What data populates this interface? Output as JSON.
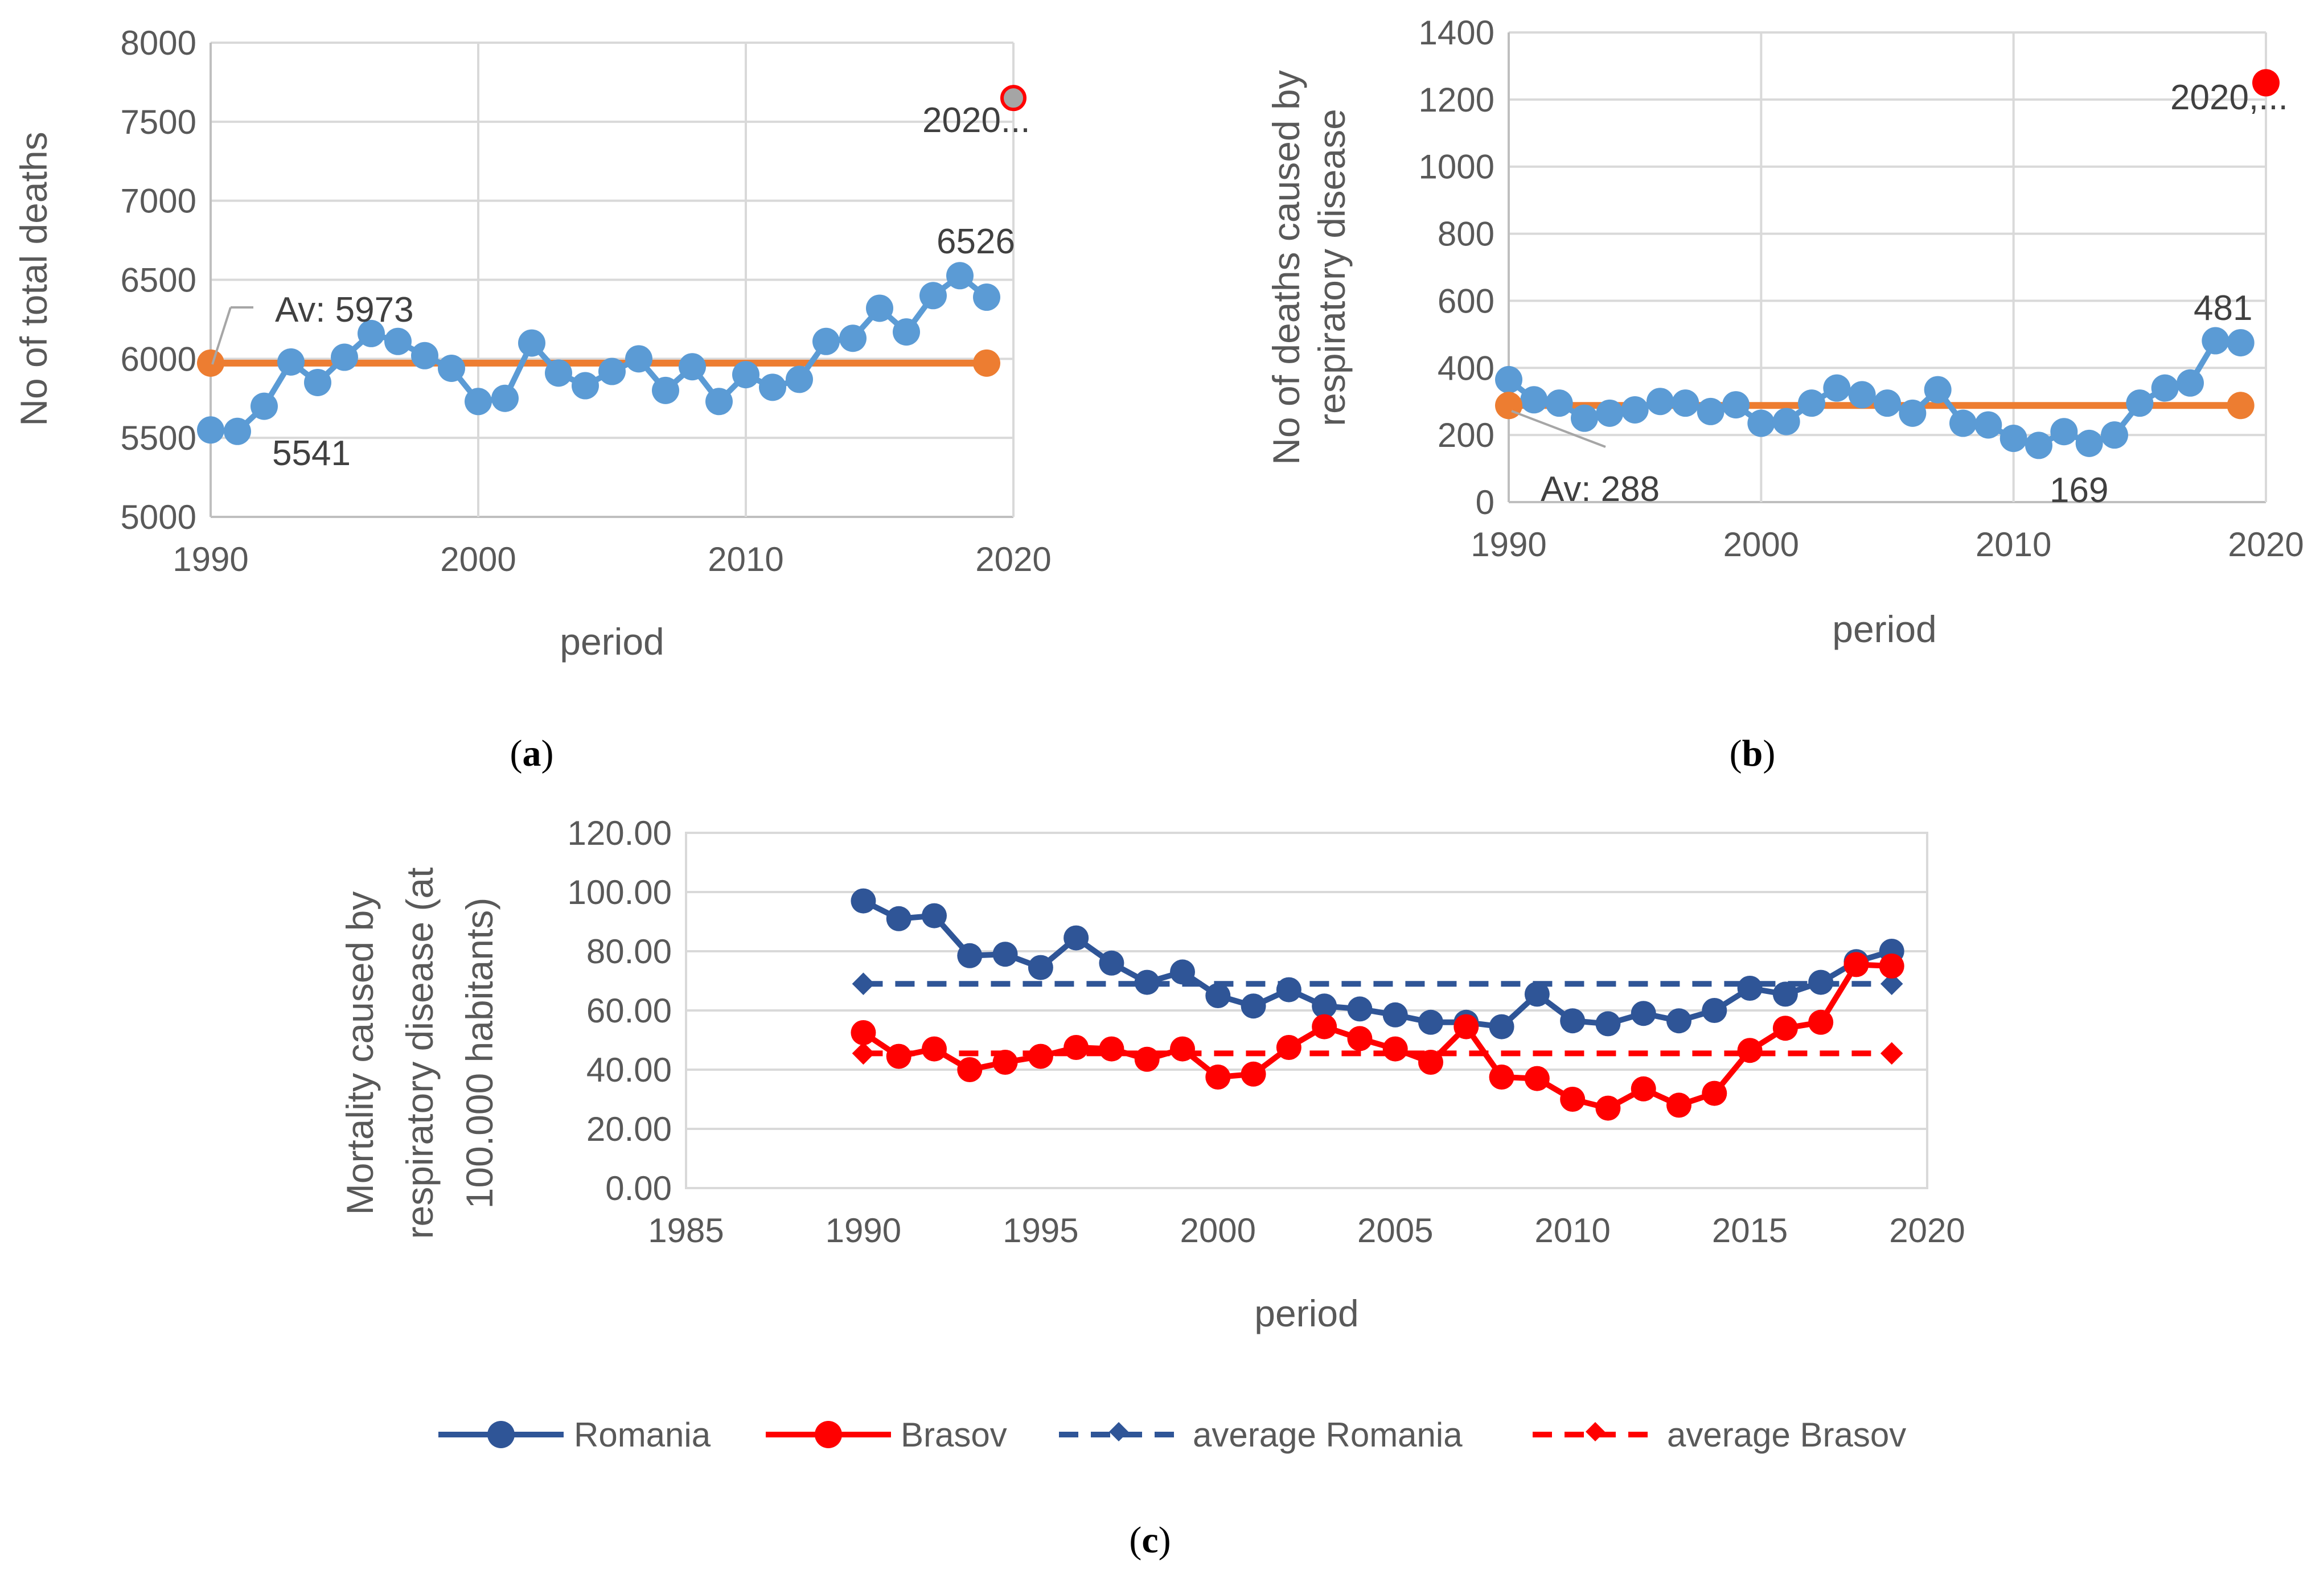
{
  "colors": {
    "series_a_b": "#5B9BD5",
    "average_a_b": "#ED7D31",
    "highlight_2020": "#FF0000",
    "grey_point": "#A5A5A5",
    "romania": "#2F5597",
    "brasov": "#FF0000",
    "grid": "#D9D9D9",
    "axis": "#BFBFBF"
  },
  "chart_data": [
    {
      "id": "a",
      "type": "line",
      "panel_label": "a",
      "xlabel": "period",
      "ylabel": "No of  total deaths",
      "xlim": [
        1990,
        2020
      ],
      "ylim": [
        5000,
        8000
      ],
      "x_ticks": [
        "1990",
        "2000",
        "2010",
        "2020"
      ],
      "y_ticks": [
        "5000",
        "5500",
        "6000",
        "6500",
        "7000",
        "7500",
        "8000"
      ],
      "series": [
        {
          "name": "total deaths",
          "x": [
            1990,
            1991,
            1992,
            1993,
            1994,
            1995,
            1996,
            1997,
            1998,
            1999,
            2000,
            2001,
            2002,
            2003,
            2004,
            2005,
            2006,
            2007,
            2008,
            2009,
            2010,
            2011,
            2012,
            2013,
            2014,
            2015,
            2016,
            2017,
            2018,
            2019
          ],
          "values": [
            5550,
            5541,
            5700,
            5980,
            5850,
            6010,
            6160,
            6110,
            6020,
            5940,
            5730,
            5750,
            6100,
            5910,
            5830,
            5920,
            6000,
            5800,
            5950,
            5730,
            5900,
            5820,
            5870,
            6110,
            6130,
            6320,
            6170,
            6400,
            6526,
            6390
          ]
        },
        {
          "name": "average",
          "x": [
            1990,
            2019
          ],
          "values": [
            5973,
            5973
          ]
        },
        {
          "name": "2020",
          "x": [
            2020
          ],
          "values": [
            7650
          ]
        }
      ],
      "annotations": {
        "average_label": "Av: 5973",
        "min_label": "5541",
        "max_label": "6526",
        "label_2020": "2020..."
      }
    },
    {
      "id": "b",
      "type": "line",
      "panel_label": "b",
      "xlabel": "period",
      "ylabel_line1": "No of deaths caused by",
      "ylabel_line2": "respiratory disease",
      "xlim": [
        1990,
        2020
      ],
      "ylim": [
        0,
        1400
      ],
      "x_ticks": [
        "1990",
        "2000",
        "2010",
        "2020"
      ],
      "y_ticks": [
        "0",
        "200",
        "400",
        "600",
        "800",
        "1000",
        "1200",
        "1400"
      ],
      "series": [
        {
          "name": "respiratory deaths",
          "x": [
            1990,
            1991,
            1992,
            1993,
            1994,
            1995,
            1996,
            1997,
            1998,
            1999,
            2000,
            2001,
            2002,
            2003,
            2004,
            2005,
            2006,
            2007,
            2008,
            2009,
            2010,
            2011,
            2012,
            2013,
            2014,
            2015,
            2016,
            2017,
            2018,
            2019
          ],
          "values": [
            365,
            305,
            295,
            250,
            265,
            275,
            300,
            295,
            270,
            290,
            235,
            240,
            295,
            340,
            320,
            295,
            265,
            335,
            235,
            230,
            190,
            169,
            210,
            175,
            200,
            295,
            340,
            355,
            481,
            475
          ]
        },
        {
          "name": "average",
          "x": [
            1990,
            2019
          ],
          "values": [
            288,
            288
          ]
        },
        {
          "name": "2020",
          "x": [
            2020
          ],
          "values": [
            1250
          ]
        }
      ],
      "annotations": {
        "average_label": "Av: 288",
        "min_label": "169",
        "max_label": "481",
        "label_2020": "2020,..."
      }
    },
    {
      "id": "c",
      "type": "line",
      "panel_label": "c",
      "xlabel": "period",
      "ylabel_line1": "Mortality caused by",
      "ylabel_line2": "respiratory disease (at",
      "ylabel_line3": "100.000 habitants)",
      "xlim": [
        1985,
        2020
      ],
      "ylim": [
        0,
        120
      ],
      "x_ticks": [
        "1985",
        "1990",
        "1995",
        "2000",
        "2005",
        "2010",
        "2015",
        "2020"
      ],
      "y_ticks": [
        "0.00",
        "20.00",
        "40.00",
        "60.00",
        "80.00",
        "100.00",
        "120.00"
      ],
      "series": [
        {
          "name": "Romania",
          "x": [
            1990,
            1991,
            1992,
            1993,
            1994,
            1995,
            1996,
            1997,
            1998,
            1999,
            2000,
            2001,
            2002,
            2003,
            2004,
            2005,
            2006,
            2007,
            2008,
            2009,
            2010,
            2011,
            2012,
            2013,
            2014,
            2015,
            2016,
            2017,
            2018,
            2019
          ],
          "values": [
            97,
            91,
            92,
            78.5,
            79,
            74.5,
            84.5,
            76,
            69.5,
            73,
            65,
            61.5,
            67,
            61.5,
            60.5,
            58.5,
            56,
            56,
            54.5,
            65.5,
            56.5,
            55.5,
            59,
            56.5,
            60,
            67.5,
            65.5,
            69.5,
            76.5,
            80
          ]
        },
        {
          "name": "Brasov",
          "x": [
            1990,
            1991,
            1992,
            1993,
            1994,
            1995,
            1996,
            1997,
            1998,
            1999,
            2000,
            2001,
            2002,
            2003,
            2004,
            2005,
            2006,
            2007,
            2008,
            2009,
            2010,
            2011,
            2012,
            2013,
            2014,
            2015,
            2016,
            2017,
            2018,
            2019
          ],
          "values": [
            52.5,
            44.5,
            47,
            40,
            42.5,
            44.5,
            47.5,
            47,
            43.5,
            47,
            37.5,
            38.5,
            47.5,
            54.5,
            50.5,
            47,
            42.5,
            54.5,
            37.5,
            37,
            30,
            27,
            33.5,
            28,
            32,
            46.5,
            54,
            56,
            75.5,
            75
          ]
        },
        {
          "name": "average Romania",
          "x": [
            1990,
            2019
          ],
          "values": [
            69,
            69
          ]
        },
        {
          "name": "average Brasov",
          "x": [
            1990,
            2019
          ],
          "values": [
            45.5,
            45.5
          ]
        }
      ]
    }
  ]
}
